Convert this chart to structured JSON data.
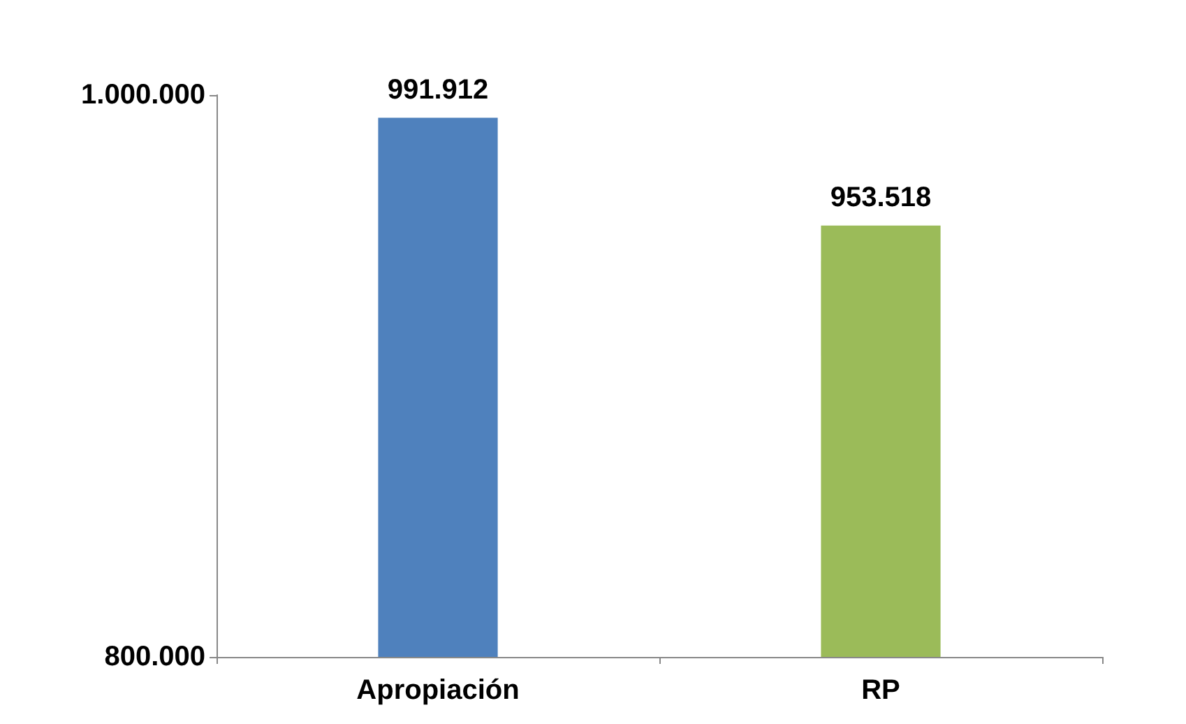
{
  "chart_data": {
    "type": "bar",
    "categories": [
      "Apropiación",
      "RP"
    ],
    "series": [
      {
        "color": "#4f81bd",
        "values": [
          991912,
          null
        ],
        "value_labels": [
          "991.912",
          null
        ]
      },
      {
        "color": "#9bbb59",
        "values": [
          null,
          953518
        ],
        "value_labels": [
          null,
          "953.518"
        ]
      }
    ],
    "stacked": true,
    "ylim": [
      800000,
      1000000
    ],
    "yticks": [
      {
        "value": 800000,
        "label": "800.000"
      },
      {
        "value": 1000000,
        "label": "1.000.000"
      }
    ],
    "grid": false
  }
}
